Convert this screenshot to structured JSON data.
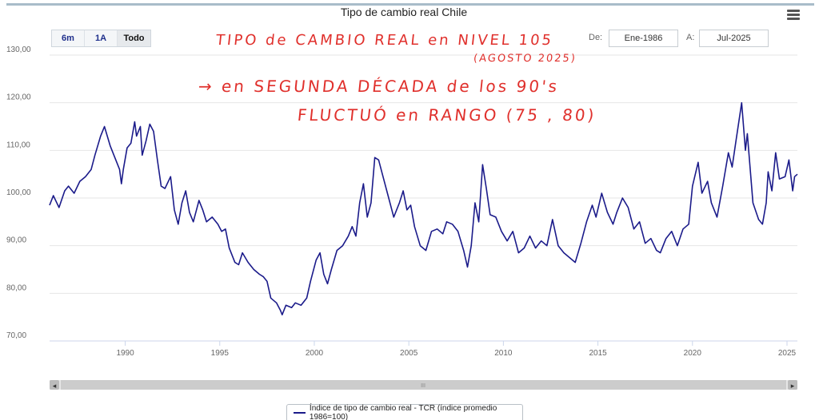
{
  "header": {
    "title": "Tipo de cambio real Chile",
    "menu_icon": "hamburger-menu-icon"
  },
  "range_selector": {
    "buttons": [
      "6m",
      "1A",
      "Todo"
    ],
    "active": "Todo",
    "from_label": "De:",
    "from_value": "Ene-1986",
    "to_label": "A:",
    "to_value": "Jul-2025"
  },
  "annotations": {
    "line1": "TIPO de CAMBIO REAL en NIVEL 105",
    "line2": "(AGOSTO 2025)",
    "line3": "→ en SEGUNDA DÉCADA de los 90's",
    "line4": "FLUCTUÓ en RANGO (75 , 80)",
    "color": "#e0302c"
  },
  "navigator": {
    "left_arrow": "◂",
    "right_arrow": "▸",
    "grip": "III"
  },
  "legend": {
    "label": "Índice de tipo de cambio real - TCR (índice promedio 1986=100)"
  },
  "chart_data": {
    "type": "line",
    "title": "Tipo de cambio real Chile",
    "xlabel": "",
    "ylabel": "",
    "xlim": [
      1986.0,
      2025.55
    ],
    "ylim": [
      70,
      130
    ],
    "x_ticks": [
      1990,
      1995,
      2000,
      2005,
      2010,
      2015,
      2020,
      2025
    ],
    "y_ticks": [
      "70,00",
      "80,00",
      "90,00",
      "100,00",
      "110,00",
      "120,00",
      "130,00"
    ],
    "grid": true,
    "legend_position": "bottom-center",
    "series": [
      {
        "name": "Índice de tipo de cambio real - TCR (índice promedio 1986=100)",
        "color": "#1b1b8a",
        "points": [
          [
            1986.0,
            98.5
          ],
          [
            1986.2,
            100.5
          ],
          [
            1986.5,
            98.0
          ],
          [
            1986.8,
            101.5
          ],
          [
            1987.0,
            102.5
          ],
          [
            1987.3,
            101.0
          ],
          [
            1987.6,
            103.5
          ],
          [
            1987.9,
            104.5
          ],
          [
            1988.2,
            106.0
          ],
          [
            1988.4,
            109.0
          ],
          [
            1988.7,
            113.0
          ],
          [
            1988.9,
            115.0
          ],
          [
            1989.2,
            111.0
          ],
          [
            1989.4,
            109.0
          ],
          [
            1989.7,
            106.0
          ],
          [
            1989.8,
            103.0
          ],
          [
            1989.9,
            106.0
          ],
          [
            1990.1,
            110.5
          ],
          [
            1990.3,
            111.5
          ],
          [
            1990.5,
            116.0
          ],
          [
            1990.6,
            113.0
          ],
          [
            1990.8,
            115.0
          ],
          [
            1990.9,
            109.0
          ],
          [
            1991.1,
            112.0
          ],
          [
            1991.3,
            115.5
          ],
          [
            1991.5,
            114.0
          ],
          [
            1991.7,
            108.0
          ],
          [
            1991.9,
            102.5
          ],
          [
            1992.1,
            102.0
          ],
          [
            1992.4,
            104.5
          ],
          [
            1992.6,
            97.5
          ],
          [
            1992.8,
            94.5
          ],
          [
            1993.0,
            99.0
          ],
          [
            1993.2,
            101.5
          ],
          [
            1993.4,
            97.0
          ],
          [
            1993.6,
            95.0
          ],
          [
            1993.9,
            99.5
          ],
          [
            1994.1,
            97.5
          ],
          [
            1994.3,
            95.0
          ],
          [
            1994.6,
            96.0
          ],
          [
            1994.9,
            94.5
          ],
          [
            1995.1,
            93.0
          ],
          [
            1995.3,
            93.5
          ],
          [
            1995.5,
            89.5
          ],
          [
            1995.8,
            86.5
          ],
          [
            1996.0,
            86.0
          ],
          [
            1996.2,
            88.5
          ],
          [
            1996.5,
            86.5
          ],
          [
            1996.8,
            85.0
          ],
          [
            1997.1,
            84.0
          ],
          [
            1997.3,
            83.5
          ],
          [
            1997.5,
            82.5
          ],
          [
            1997.7,
            79.0
          ],
          [
            1998.0,
            78.0
          ],
          [
            1998.2,
            76.5
          ],
          [
            1998.3,
            75.5
          ],
          [
            1998.5,
            77.5
          ],
          [
            1998.8,
            77.0
          ],
          [
            1999.0,
            78.0
          ],
          [
            1999.3,
            77.5
          ],
          [
            1999.6,
            79.0
          ],
          [
            1999.8,
            82.5
          ],
          [
            2000.1,
            87.0
          ],
          [
            2000.3,
            88.5
          ],
          [
            2000.5,
            84.0
          ],
          [
            2000.7,
            82.0
          ],
          [
            2000.9,
            85.0
          ],
          [
            2001.2,
            89.0
          ],
          [
            2001.5,
            90.0
          ],
          [
            2001.8,
            92.0
          ],
          [
            2002.0,
            94.0
          ],
          [
            2002.2,
            92.0
          ],
          [
            2002.4,
            99.0
          ],
          [
            2002.6,
            103.0
          ],
          [
            2002.8,
            96.0
          ],
          [
            2003.0,
            99.0
          ],
          [
            2003.2,
            108.5
          ],
          [
            2003.4,
            108.0
          ],
          [
            2003.6,
            105.0
          ],
          [
            2003.9,
            100.5
          ],
          [
            2004.2,
            96.0
          ],
          [
            2004.5,
            99.0
          ],
          [
            2004.7,
            101.5
          ],
          [
            2004.9,
            97.5
          ],
          [
            2005.1,
            98.5
          ],
          [
            2005.3,
            94.0
          ],
          [
            2005.6,
            90.0
          ],
          [
            2005.9,
            89.0
          ],
          [
            2006.2,
            93.0
          ],
          [
            2006.5,
            93.5
          ],
          [
            2006.8,
            92.5
          ],
          [
            2007.0,
            95.0
          ],
          [
            2007.3,
            94.5
          ],
          [
            2007.6,
            93.0
          ],
          [
            2007.9,
            89.0
          ],
          [
            2008.1,
            85.5
          ],
          [
            2008.3,
            90.0
          ],
          [
            2008.5,
            99.0
          ],
          [
            2008.7,
            95.0
          ],
          [
            2008.9,
            107.0
          ],
          [
            2009.1,
            102.0
          ],
          [
            2009.3,
            96.5
          ],
          [
            2009.6,
            96.0
          ],
          [
            2009.9,
            93.0
          ],
          [
            2010.2,
            91.0
          ],
          [
            2010.5,
            93.0
          ],
          [
            2010.8,
            88.5
          ],
          [
            2011.1,
            89.5
          ],
          [
            2011.4,
            92.0
          ],
          [
            2011.7,
            89.5
          ],
          [
            2012.0,
            91.0
          ],
          [
            2012.3,
            90.0
          ],
          [
            2012.6,
            95.5
          ],
          [
            2012.9,
            90.0
          ],
          [
            2013.2,
            88.5
          ],
          [
            2013.5,
            87.5
          ],
          [
            2013.8,
            86.5
          ],
          [
            2014.1,
            90.5
          ],
          [
            2014.4,
            95.0
          ],
          [
            2014.7,
            98.5
          ],
          [
            2014.9,
            96.0
          ],
          [
            2015.2,
            101.0
          ],
          [
            2015.5,
            97.0
          ],
          [
            2015.8,
            94.5
          ],
          [
            2016.0,
            97.0
          ],
          [
            2016.3,
            100.0
          ],
          [
            2016.6,
            98.0
          ],
          [
            2016.9,
            93.5
          ],
          [
            2017.2,
            95.0
          ],
          [
            2017.5,
            90.5
          ],
          [
            2017.8,
            91.5
          ],
          [
            2018.1,
            89.0
          ],
          [
            2018.3,
            88.5
          ],
          [
            2018.6,
            91.5
          ],
          [
            2018.9,
            93.0
          ],
          [
            2019.2,
            90.0
          ],
          [
            2019.5,
            93.5
          ],
          [
            2019.8,
            94.5
          ],
          [
            2020.0,
            102.5
          ],
          [
            2020.3,
            107.5
          ],
          [
            2020.5,
            101.0
          ],
          [
            2020.8,
            103.5
          ],
          [
            2021.0,
            99.0
          ],
          [
            2021.3,
            96.0
          ],
          [
            2021.6,
            102.5
          ],
          [
            2021.9,
            109.5
          ],
          [
            2022.1,
            106.5
          ],
          [
            2022.3,
            112.0
          ],
          [
            2022.6,
            120.0
          ],
          [
            2022.8,
            110.0
          ],
          [
            2022.9,
            113.5
          ],
          [
            2023.2,
            99.0
          ],
          [
            2023.5,
            95.5
          ],
          [
            2023.7,
            94.5
          ],
          [
            2023.9,
            99.0
          ],
          [
            2024.0,
            105.5
          ],
          [
            2024.2,
            101.5
          ],
          [
            2024.4,
            109.5
          ],
          [
            2024.6,
            104.0
          ],
          [
            2024.9,
            104.5
          ],
          [
            2025.1,
            108.0
          ],
          [
            2025.3,
            101.5
          ],
          [
            2025.4,
            104.5
          ],
          [
            2025.55,
            105.0
          ]
        ]
      }
    ]
  }
}
